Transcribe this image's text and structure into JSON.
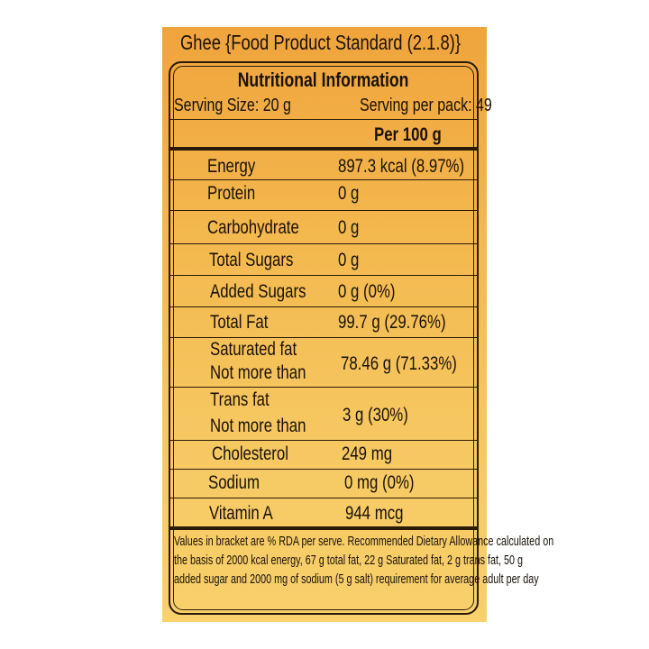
{
  "title": "Ghee {Food Product Standard (2.1.8)}",
  "heading": "Nutritional Information",
  "serving_size": "Serving Size:  20 g",
  "serving_per_pack": "Serving per pack: 49",
  "column_header": "Per 100 g",
  "rows": [
    {
      "label": "Energy",
      "value": "897.3  kcal (8.97%)"
    },
    {
      "label": "Protein",
      "value": "0 g"
    },
    {
      "label": "Carbohydrate",
      "value": "0 g"
    },
    {
      "label": "Total Sugars",
      "value": "0 g"
    },
    {
      "label": "Added Sugars",
      "value": "0 g (0%)"
    },
    {
      "label": "Total Fat",
      "value": "99.7 g (29.76%)"
    },
    {
      "label": "Saturated fat",
      "label2": "Not more than",
      "value": "78.46 g (71.33%)"
    },
    {
      "label": "Trans fat",
      "label2": "Not more than",
      "value": "3 g (30%)"
    },
    {
      "label": "Cholesterol",
      "value": "249 mg"
    },
    {
      "label": "Sodium",
      "value": "0 mg (0%)"
    },
    {
      "label": "Vitamin A",
      "value": "944 mcg"
    }
  ],
  "footnote": [
    "Values in bracket are % RDA per serve. Recommended Dietary Allowance calculated on",
    "the basis of 2000 kcal energy, 67 g total fat, 22 g Saturated fat, 2 g trans fat, 50 g",
    "added sugar and 2000 mg of sodium (5 g salt) requirement for average adult per day"
  ],
  "colors": {
    "panel_top": "#f0a43c",
    "panel_bottom": "#f8d06c",
    "ink": "#1a1208"
  }
}
